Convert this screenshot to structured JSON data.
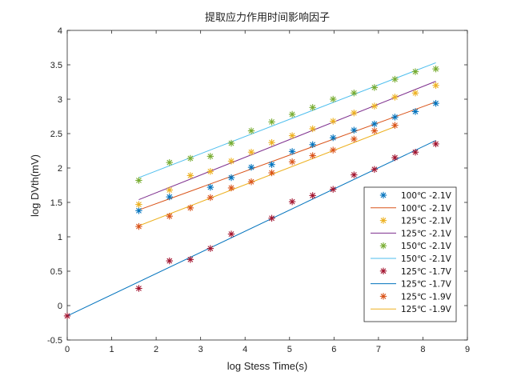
{
  "chart_data": {
    "type": "scatter",
    "title": "提取应力作用时间影响因子",
    "xlabel": "log Stess Time(s)",
    "ylabel": "log DVth(mV)",
    "xlim": [
      0,
      9
    ],
    "ylim": [
      -0.5,
      4
    ],
    "xticks": [
      "0",
      "1",
      "2",
      "3",
      "4",
      "5",
      "6",
      "7",
      "8",
      "9"
    ],
    "yticks": [
      "-0.5",
      "0",
      "0.5",
      "1",
      "1.5",
      "2",
      "2.5",
      "3",
      "3.5",
      "4"
    ],
    "legend_position": "lower-right",
    "series": [
      {
        "name": "100℃ -2.1V",
        "kind": "points",
        "color": "#0072BD",
        "x": [
          1.61,
          2.3,
          3.22,
          3.69,
          4.14,
          4.6,
          5.06,
          5.52,
          5.98,
          6.45,
          6.91,
          7.37,
          7.83,
          8.29
        ],
        "y": [
          1.38,
          1.58,
          1.72,
          1.86,
          2.01,
          2.05,
          2.24,
          2.34,
          2.44,
          2.55,
          2.64,
          2.74,
          2.82,
          2.94
        ]
      },
      {
        "name": "100℃ -2.1V",
        "kind": "line",
        "color": "#D95319",
        "x": [
          1.61,
          8.29
        ],
        "y": [
          1.39,
          2.96
        ]
      },
      {
        "name": "125℃ -2.1V",
        "kind": "points",
        "color": "#EDB120",
        "x": [
          1.61,
          2.3,
          2.77,
          3.22,
          3.69,
          4.14,
          4.6,
          5.06,
          5.52,
          5.98,
          6.45,
          6.91,
          7.37,
          7.83,
          8.29
        ],
        "y": [
          1.47,
          1.68,
          1.89,
          1.95,
          2.1,
          2.23,
          2.37,
          2.47,
          2.57,
          2.68,
          2.8,
          2.9,
          3.03,
          3.09,
          3.2
        ]
      },
      {
        "name": "125℃ -2.1V",
        "kind": "line",
        "color": "#7E2F8E",
        "x": [
          1.61,
          8.29
        ],
        "y": [
          1.54,
          3.26
        ]
      },
      {
        "name": "150℃ -2.1V",
        "kind": "points",
        "color": "#77AC30",
        "x": [
          1.61,
          2.3,
          2.77,
          3.22,
          3.69,
          4.14,
          4.6,
          5.06,
          5.52,
          5.98,
          6.45,
          6.91,
          7.37,
          7.83,
          8.29
        ],
        "y": [
          1.82,
          2.08,
          2.14,
          2.17,
          2.36,
          2.54,
          2.67,
          2.78,
          2.88,
          3.0,
          3.09,
          3.17,
          3.29,
          3.4,
          3.44
        ]
      },
      {
        "name": "150℃ -2.1V",
        "kind": "line",
        "color": "#4DBEEE",
        "x": [
          1.61,
          8.29
        ],
        "y": [
          1.86,
          3.53
        ]
      },
      {
        "name": "125℃ -1.7V",
        "kind": "points",
        "color": "#A2142F",
        "x": [
          0,
          1.61,
          2.3,
          2.77,
          3.22,
          3.69,
          4.6,
          5.06,
          5.52,
          5.98,
          6.45,
          6.91,
          7.37,
          7.83,
          8.29
        ],
        "y": [
          -0.15,
          0.25,
          0.65,
          0.67,
          0.83,
          1.04,
          1.27,
          1.51,
          1.6,
          1.69,
          1.9,
          1.98,
          2.15,
          2.23,
          2.35
        ]
      },
      {
        "name": "125℃ -1.7V",
        "kind": "line",
        "color": "#0072BD",
        "x": [
          0,
          8.29
        ],
        "y": [
          -0.15,
          2.4
        ]
      },
      {
        "name": "125℃ -1.9V",
        "kind": "points",
        "color": "#D95319",
        "x": [
          1.61,
          2.3,
          2.77,
          3.22,
          3.69,
          4.14,
          4.6,
          5.06,
          5.52,
          5.98,
          6.45,
          6.91,
          7.37
        ],
        "y": [
          1.15,
          1.3,
          1.42,
          1.57,
          1.71,
          1.8,
          1.93,
          2.09,
          2.18,
          2.26,
          2.42,
          2.54,
          2.62
        ]
      },
      {
        "name": "125℃ -1.9V",
        "kind": "line",
        "color": "#EDB120",
        "x": [
          1.61,
          7.37
        ],
        "y": [
          1.16,
          2.6
        ]
      }
    ]
  }
}
